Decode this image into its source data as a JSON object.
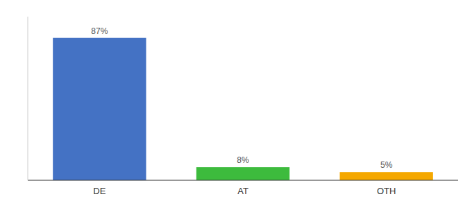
{
  "chart_data": {
    "type": "bar",
    "categories": [
      "DE",
      "AT",
      "OTH"
    ],
    "values": [
      87,
      8,
      5
    ],
    "value_labels": [
      "87%",
      "8%",
      "5%"
    ],
    "colors": [
      "#4472c4",
      "#3dbb3d",
      "#f5a800"
    ],
    "ylim": [
      0,
      100
    ],
    "data_labels": true,
    "tick_labels": "x"
  }
}
